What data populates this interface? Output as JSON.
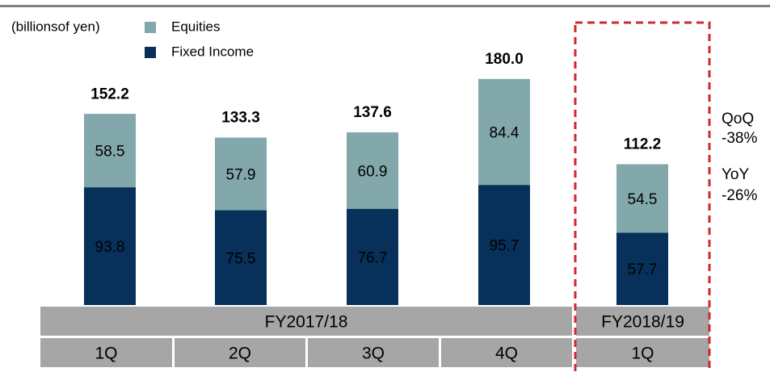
{
  "chart_data": {
    "type": "stacked-bar",
    "unit_label": "(billionsof yen)",
    "categories": [
      "1Q",
      "2Q",
      "3Q",
      "4Q",
      "1Q"
    ],
    "fiscal_years": [
      "FY2017/18",
      "FY2017/18",
      "FY2017/18",
      "FY2017/18",
      "FY2018/19"
    ],
    "series": [
      {
        "name": "Fixed Income",
        "color": "#07315a",
        "label_color": "#ffffff",
        "values": [
          93.8,
          75.5,
          76.7,
          95.7,
          57.7
        ]
      },
      {
        "name": "Equities",
        "color": "#82a8ab",
        "label_color": "#000000",
        "values": [
          58.5,
          57.9,
          60.9,
          84.4,
          54.5
        ]
      }
    ],
    "totals": [
      152.2,
      133.3,
      137.6,
      180,
      112.2
    ],
    "totals_labels": [
      "152.2",
      "133.3",
      "137.6",
      "180.0",
      "112.2"
    ],
    "annotations": [
      "QoQ",
      "-38%",
      "YoY",
      "-26%"
    ],
    "highlight_color": "#d0282e"
  }
}
